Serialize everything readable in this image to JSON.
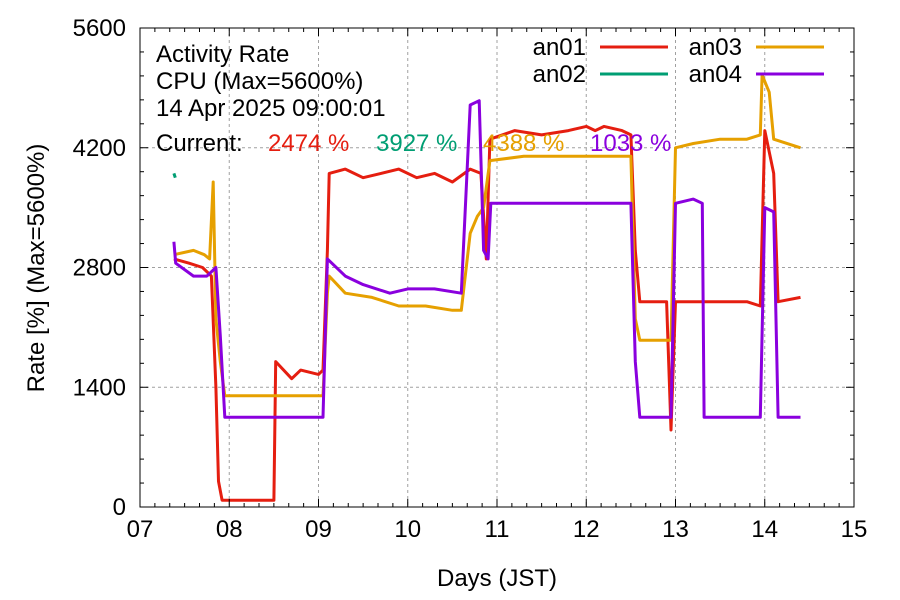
{
  "chart_data": {
    "type": "line",
    "title_lines": [
      "Activity Rate",
      "CPU (Max=5600%)",
      "14 Apr 2025 09:00:01"
    ],
    "current_label": "Current:",
    "xlabel": "Days (JST)",
    "ylabel": "Rate [%]  (Max=5600%)",
    "xlim": [
      7,
      15
    ],
    "ylim": [
      0,
      5600
    ],
    "grid": true,
    "legend_position": "top-right",
    "x_ticks": [
      {
        "value": 7,
        "label": "07"
      },
      {
        "value": 8,
        "label": "08"
      },
      {
        "value": 9,
        "label": "09"
      },
      {
        "value": 10,
        "label": "10"
      },
      {
        "value": 11,
        "label": "11"
      },
      {
        "value": 12,
        "label": "12"
      },
      {
        "value": 13,
        "label": "13"
      },
      {
        "value": 14,
        "label": "14"
      },
      {
        "value": 15,
        "label": "15"
      }
    ],
    "y_ticks": [
      {
        "value": 0,
        "label": "0"
      },
      {
        "value": 1400,
        "label": "1400"
      },
      {
        "value": 2800,
        "label": "2800"
      },
      {
        "value": 4200,
        "label": "4200"
      },
      {
        "value": 5600,
        "label": "5600"
      }
    ],
    "series": [
      {
        "name": "an01",
        "color": "#e51e10",
        "current": "2474 %",
        "points": [
          [
            7.38,
            2900
          ],
          [
            7.55,
            2850
          ],
          [
            7.7,
            2800
          ],
          [
            7.8,
            2700
          ],
          [
            7.85,
            1400
          ],
          [
            7.88,
            300
          ],
          [
            7.92,
            80
          ],
          [
            8.2,
            80
          ],
          [
            8.5,
            80
          ],
          [
            8.52,
            1700
          ],
          [
            8.7,
            1500
          ],
          [
            8.8,
            1600
          ],
          [
            9.0,
            1550
          ],
          [
            9.05,
            1600
          ],
          [
            9.1,
            3000
          ],
          [
            9.12,
            3900
          ],
          [
            9.3,
            3950
          ],
          [
            9.5,
            3850
          ],
          [
            9.7,
            3900
          ],
          [
            9.9,
            3950
          ],
          [
            10.1,
            3850
          ],
          [
            10.3,
            3900
          ],
          [
            10.5,
            3800
          ],
          [
            10.7,
            3950
          ],
          [
            10.82,
            3900
          ],
          [
            10.88,
            2900
          ],
          [
            10.92,
            4300
          ],
          [
            11.2,
            4400
          ],
          [
            11.5,
            4350
          ],
          [
            11.8,
            4400
          ],
          [
            12.0,
            4450
          ],
          [
            12.1,
            4400
          ],
          [
            12.2,
            4450
          ],
          [
            12.4,
            4400
          ],
          [
            12.5,
            4350
          ],
          [
            12.55,
            3000
          ],
          [
            12.6,
            2400
          ],
          [
            12.9,
            2400
          ],
          [
            12.95,
            900
          ],
          [
            13.0,
            2400
          ],
          [
            13.3,
            2400
          ],
          [
            13.5,
            2400
          ],
          [
            13.8,
            2400
          ],
          [
            13.95,
            2350
          ],
          [
            14.0,
            4400
          ],
          [
            14.1,
            3900
          ],
          [
            14.15,
            2400
          ],
          [
            14.4,
            2450
          ]
        ]
      },
      {
        "name": "an02",
        "color": "#009e73",
        "current": "3927 %",
        "points": [
          [
            7.38,
            3900
          ],
          [
            7.395,
            3850
          ]
        ]
      },
      {
        "name": "an03",
        "color": "#e6a000",
        "current": "4388 %",
        "points": [
          [
            7.38,
            2950
          ],
          [
            7.6,
            3000
          ],
          [
            7.72,
            2950
          ],
          [
            7.78,
            2900
          ],
          [
            7.82,
            3800
          ],
          [
            7.85,
            2200
          ],
          [
            7.9,
            1700
          ],
          [
            7.95,
            1300
          ],
          [
            8.5,
            1300
          ],
          [
            8.8,
            1300
          ],
          [
            9.05,
            1300
          ],
          [
            9.1,
            2500
          ],
          [
            9.12,
            2700
          ],
          [
            9.3,
            2500
          ],
          [
            9.6,
            2450
          ],
          [
            9.9,
            2350
          ],
          [
            10.2,
            2350
          ],
          [
            10.5,
            2300
          ],
          [
            10.6,
            2300
          ],
          [
            10.7,
            3200
          ],
          [
            10.78,
            3400
          ],
          [
            10.85,
            3500
          ],
          [
            10.92,
            4050
          ],
          [
            11.3,
            4100
          ],
          [
            11.8,
            4100
          ],
          [
            12.2,
            4100
          ],
          [
            12.5,
            4100
          ],
          [
            12.55,
            2200
          ],
          [
            12.6,
            1950
          ],
          [
            12.95,
            1950
          ],
          [
            13.0,
            4200
          ],
          [
            13.2,
            4250
          ],
          [
            13.5,
            4300
          ],
          [
            13.8,
            4300
          ],
          [
            13.95,
            4350
          ],
          [
            13.97,
            5050
          ],
          [
            14.05,
            4850
          ],
          [
            14.1,
            4300
          ],
          [
            14.4,
            4200
          ]
        ]
      },
      {
        "name": "an04",
        "color": "#8a00de",
        "current": "1033 %",
        "points": [
          [
            7.38,
            3100
          ],
          [
            7.4,
            2850
          ],
          [
            7.6,
            2700
          ],
          [
            7.75,
            2700
          ],
          [
            7.85,
            2800
          ],
          [
            7.9,
            2000
          ],
          [
            7.95,
            1050
          ],
          [
            8.5,
            1050
          ],
          [
            9.0,
            1050
          ],
          [
            9.05,
            1050
          ],
          [
            9.1,
            2900
          ],
          [
            9.3,
            2700
          ],
          [
            9.5,
            2600
          ],
          [
            9.8,
            2500
          ],
          [
            10.0,
            2550
          ],
          [
            10.3,
            2550
          ],
          [
            10.6,
            2500
          ],
          [
            10.7,
            4700
          ],
          [
            10.8,
            4750
          ],
          [
            10.85,
            3000
          ],
          [
            10.9,
            2900
          ],
          [
            10.93,
            3550
          ],
          [
            11.3,
            3550
          ],
          [
            11.8,
            3550
          ],
          [
            12.2,
            3550
          ],
          [
            12.5,
            3550
          ],
          [
            12.55,
            1700
          ],
          [
            12.6,
            1050
          ],
          [
            12.95,
            1050
          ],
          [
            13.0,
            3550
          ],
          [
            13.2,
            3600
          ],
          [
            13.3,
            3550
          ],
          [
            13.32,
            1050
          ],
          [
            13.6,
            1050
          ],
          [
            13.95,
            1050
          ],
          [
            14.0,
            3500
          ],
          [
            14.1,
            3450
          ],
          [
            14.15,
            1050
          ],
          [
            14.4,
            1050
          ]
        ]
      }
    ]
  }
}
